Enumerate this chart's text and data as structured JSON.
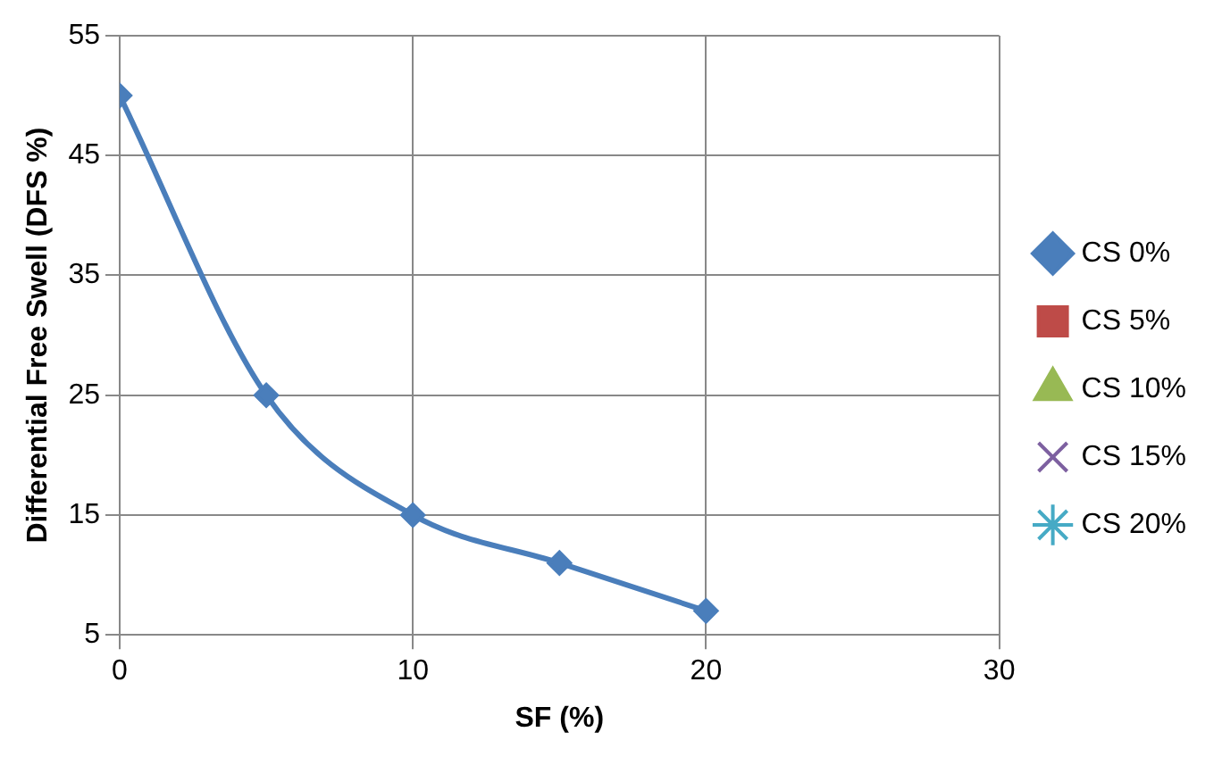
{
  "chart_data": {
    "type": "line",
    "xlabel": "SF (%)",
    "ylabel": "Differential Free Swell (DFS %)",
    "x": [
      0,
      5,
      10,
      15,
      20
    ],
    "series": [
      {
        "name": "CS 0%",
        "color": "#4a7ebb",
        "marker": "diamond",
        "values": [
          50,
          25,
          15,
          11,
          7
        ]
      },
      {
        "name": "CS 5%",
        "color": "#be4b48",
        "marker": "square",
        "values": [
          null,
          null,
          null,
          null,
          null
        ]
      },
      {
        "name": "CS 10%",
        "color": "#98b954",
        "marker": "triangle",
        "values": [
          null,
          null,
          null,
          null,
          null
        ]
      },
      {
        "name": "CS 15%",
        "color": "#7d60a0",
        "marker": "cross",
        "values": [
          null,
          null,
          null,
          null,
          null
        ]
      },
      {
        "name": "CS 20%",
        "color": "#46aac5",
        "marker": "star",
        "values": [
          null,
          null,
          null,
          null,
          null
        ]
      }
    ],
    "xlim": [
      0,
      30
    ],
    "xticks": [
      0,
      10,
      20,
      30
    ],
    "ylim": [
      5,
      55
    ],
    "yticks": [
      5,
      15,
      25,
      35,
      45,
      55
    ],
    "grid": true,
    "legend": "right",
    "line_style": "solid"
  }
}
